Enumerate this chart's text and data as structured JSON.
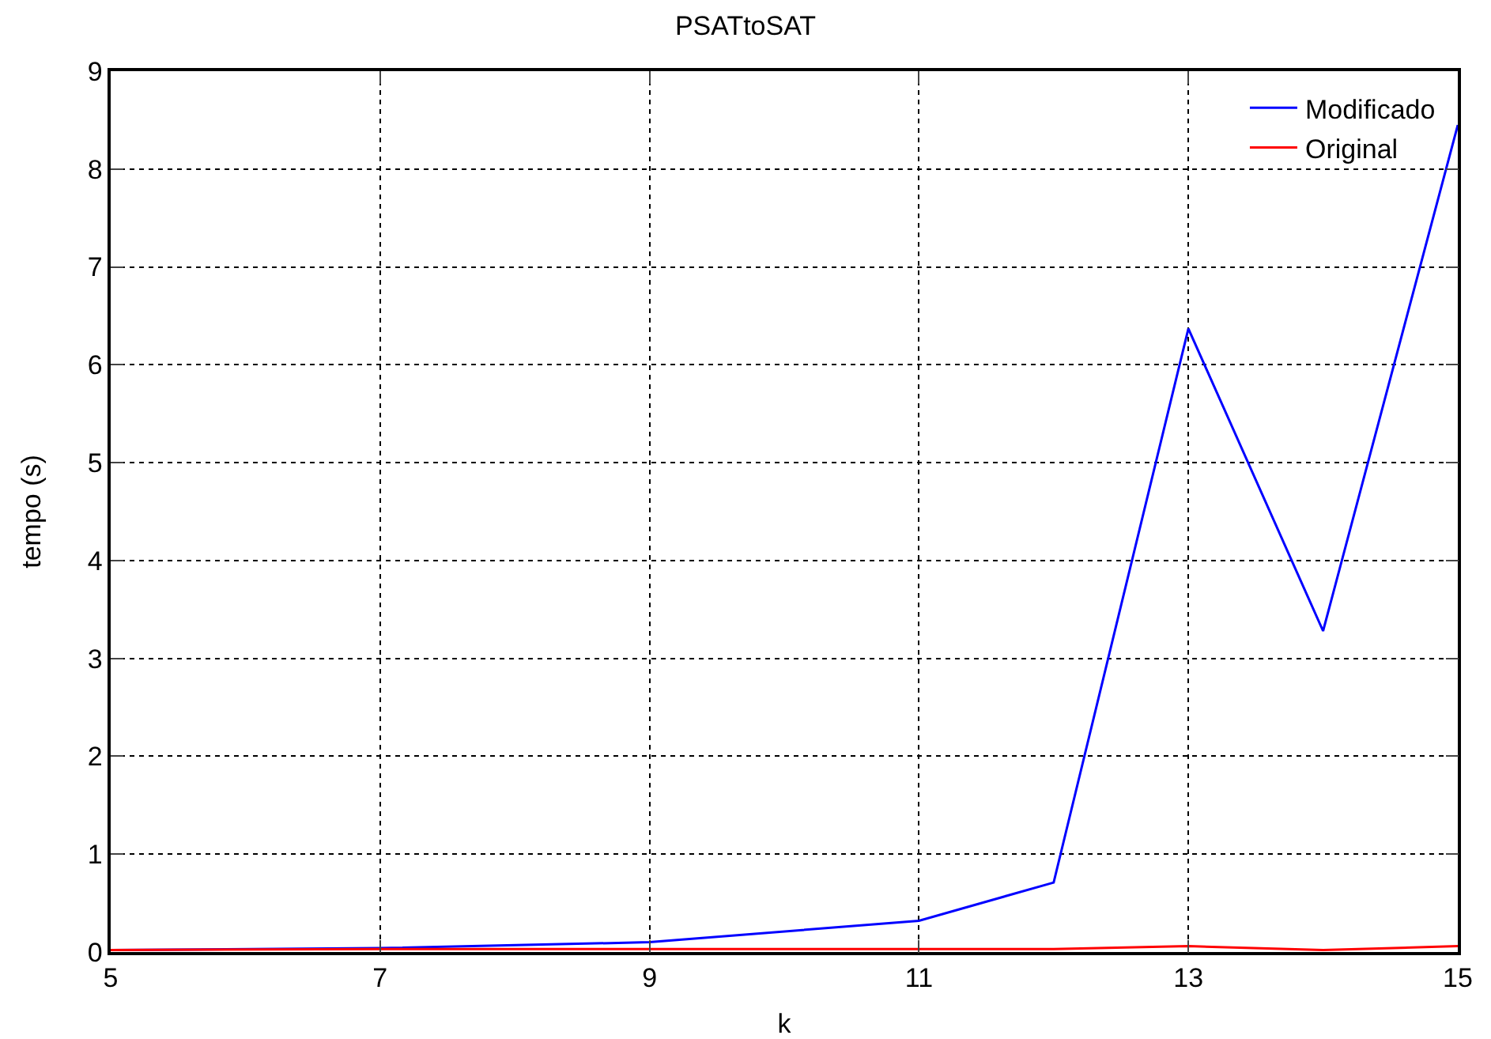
{
  "chart_data": {
    "type": "line",
    "title": "PSATtoSAT",
    "xlabel": "k",
    "ylabel": "tempo (s)",
    "x": [
      5,
      7,
      9,
      11,
      12,
      13,
      14,
      15
    ],
    "series": [
      {
        "name": "Modificado",
        "color": "#0000ff",
        "values": [
          0.02,
          0.04,
          0.1,
          0.32,
          0.71,
          6.37,
          3.28,
          8.45
        ]
      },
      {
        "name": "Original",
        "color": "#ff0000",
        "values": [
          0.02,
          0.03,
          0.03,
          0.03,
          0.03,
          0.06,
          0.02,
          0.06
        ]
      }
    ],
    "xlim": [
      5,
      15
    ],
    "xticks": [
      5,
      7,
      9,
      11,
      13,
      15
    ],
    "ylim": [
      0,
      9
    ],
    "yticks": [
      0,
      1,
      2,
      3,
      4,
      5,
      6,
      7,
      8,
      9
    ],
    "grid": true,
    "legend": "top right",
    "marker": "none",
    "line_style": "solid"
  }
}
